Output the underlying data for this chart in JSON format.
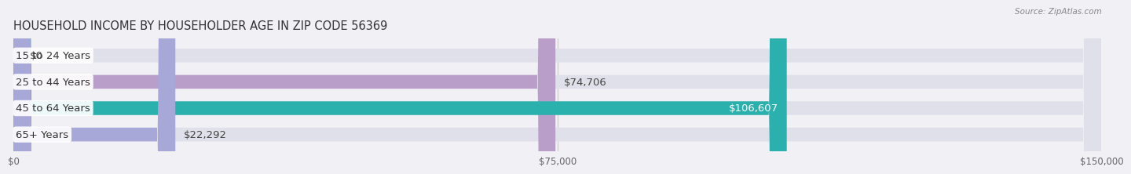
{
  "title": "HOUSEHOLD INCOME BY HOUSEHOLDER AGE IN ZIP CODE 56369",
  "source": "Source: ZipAtlas.com",
  "categories": [
    "15 to 24 Years",
    "25 to 44 Years",
    "45 to 64 Years",
    "65+ Years"
  ],
  "values": [
    0,
    74706,
    106607,
    22292
  ],
  "bar_colors": [
    "#a8c0dc",
    "#b89ec8",
    "#2ab0ad",
    "#a8a8d8"
  ],
  "label_colors": [
    "#444444",
    "#444444",
    "#ffffff",
    "#444444"
  ],
  "background_color": "#f0f0f5",
  "bar_bg_color": "#e0e0ea",
  "xlim": [
    0,
    150000
  ],
  "xticks": [
    0,
    75000,
    150000
  ],
  "xtick_labels": [
    "$0",
    "$75,000",
    "$150,000"
  ],
  "value_labels": [
    "$0",
    "$74,706",
    "$106,607",
    "$22,292"
  ],
  "title_fontsize": 10.5,
  "label_fontsize": 9.5,
  "tick_fontsize": 8.5,
  "bar_height": 0.52,
  "rounding_size": 2500
}
